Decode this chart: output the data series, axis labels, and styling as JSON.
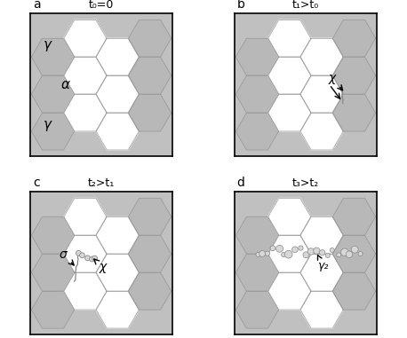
{
  "panels": [
    "a",
    "b",
    "c",
    "d"
  ],
  "titles": [
    "t₀=0",
    "t₁>t₀",
    "t₂>t₁",
    "t₃>t₂"
  ],
  "bg_color": "#c0c0c0",
  "hex_white": "#ffffff",
  "hex_gray": "#b8b8b8",
  "fig_bg": "#ffffff",
  "border_color": "#888888",
  "label_color": "#000000",
  "chi_symbol": "χ",
  "sigma_symbol": "σ",
  "gamma2_symbol": "γ₂",
  "gamma_symbol": "γ",
  "alpha_symbol": "α"
}
